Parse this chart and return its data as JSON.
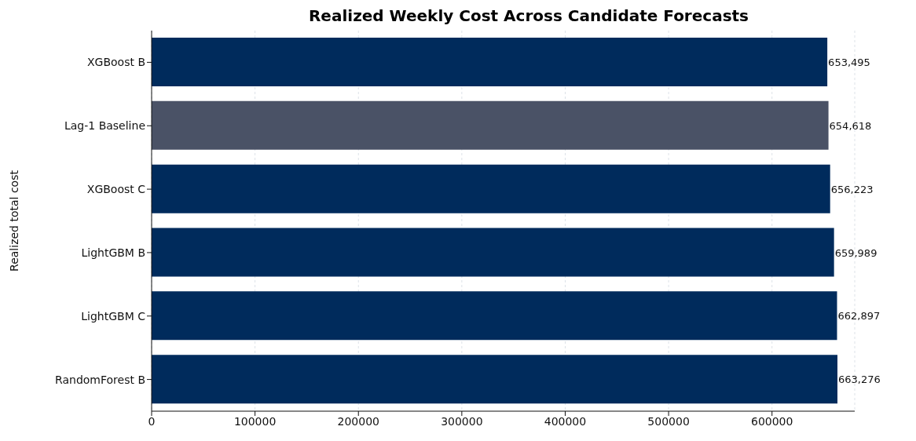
{
  "chart_data": {
    "type": "bar",
    "orientation": "horizontal",
    "title": "Realized Weekly Cost Across Candidate Forecasts",
    "ylabel": "Realized total cost",
    "categories": [
      "XGBoost B",
      "Lag-1 Baseline",
      "XGBoost C",
      "LightGBM B",
      "LightGBM C",
      "RandomForest B"
    ],
    "values": [
      653495,
      654618,
      656223,
      659989,
      662897,
      663276
    ],
    "colors": [
      "#002b5c",
      "#4a5266",
      "#002b5c",
      "#002b5c",
      "#002b5c",
      "#002b5c"
    ],
    "value_labels": [
      "653,495",
      "654,618",
      "656,223",
      "659,989",
      "662,897",
      "663,276"
    ],
    "xlim": [
      0,
      680000
    ],
    "xticks": [
      0,
      100000,
      200000,
      300000,
      400000,
      500000,
      600000
    ],
    "grid": "x",
    "legend": false
  }
}
